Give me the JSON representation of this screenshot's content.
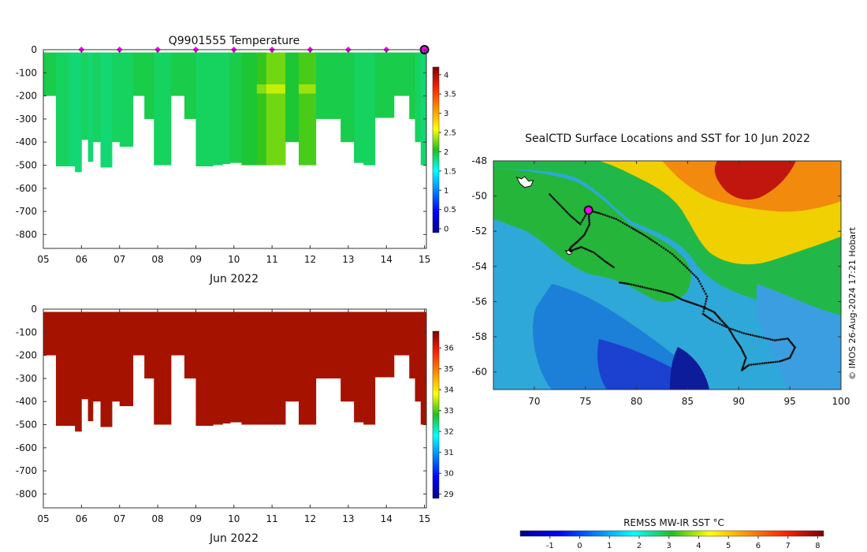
{
  "credit": "© IMOS 26-Aug-2024 17:21 Hobart",
  "months": [
    "05",
    "06",
    "07",
    "08",
    "09",
    "10",
    "11",
    "12",
    "13",
    "14",
    "15"
  ],
  "chart_data": [
    {
      "type": "heatmap",
      "title": "Q9901555  Temperature",
      "xlabel": "Jun 2022",
      "ylabel": "",
      "x_ticks": [
        "05",
        "06",
        "07",
        "08",
        "09",
        "10",
        "11",
        "12",
        "13",
        "14",
        "15"
      ],
      "xlim": [
        5,
        15.05
      ],
      "ylim": [
        -860,
        0
      ],
      "y_ticks": [
        0,
        -100,
        -200,
        -300,
        -400,
        -500,
        -600,
        -700,
        -800
      ],
      "colorbar": {
        "min": -0.1,
        "max": 4.2,
        "ticks": [
          0,
          0.5,
          1,
          1.5,
          2,
          2.5,
          3,
          3.5,
          4
        ]
      },
      "surface_markers": [
        6,
        7,
        8,
        9,
        10,
        11,
        12,
        13,
        14
      ],
      "current_marker": 15,
      "profiles": [
        {
          "t0": 5.0,
          "t1": 5.33,
          "depth": 200,
          "temp": 1.95
        },
        {
          "t0": 5.33,
          "t1": 5.67,
          "depth": 505,
          "temp": 1.9
        },
        {
          "t0": 5.67,
          "t1": 5.83,
          "depth": 505,
          "temp": 1.85
        },
        {
          "t0": 5.83,
          "t1": 6.0,
          "depth": 530,
          "temp": 1.85
        },
        {
          "t0": 6.0,
          "t1": 6.17,
          "depth": 390,
          "temp": 1.9
        },
        {
          "t0": 6.17,
          "t1": 6.3,
          "depth": 485,
          "temp": 1.85
        },
        {
          "t0": 6.3,
          "t1": 6.5,
          "depth": 400,
          "temp": 1.9
        },
        {
          "t0": 6.5,
          "t1": 6.8,
          "depth": 510,
          "temp": 1.85
        },
        {
          "t0": 6.8,
          "t1": 7.0,
          "depth": 400,
          "temp": 1.9
        },
        {
          "t0": 7.0,
          "t1": 7.35,
          "depth": 420,
          "temp": 1.9
        },
        {
          "t0": 7.35,
          "t1": 7.65,
          "depth": 200,
          "temp": 1.95
        },
        {
          "t0": 7.65,
          "t1": 7.9,
          "depth": 300,
          "temp": 1.95
        },
        {
          "t0": 7.9,
          "t1": 8.35,
          "depth": 500,
          "temp": 1.9
        },
        {
          "t0": 8.35,
          "t1": 8.7,
          "depth": 200,
          "temp": 1.95
        },
        {
          "t0": 8.7,
          "t1": 9.0,
          "depth": 300,
          "temp": 1.95
        },
        {
          "t0": 9.0,
          "t1": 9.45,
          "depth": 505,
          "temp": 1.9
        },
        {
          "t0": 9.45,
          "t1": 9.7,
          "depth": 500,
          "temp": 1.9
        },
        {
          "t0": 9.7,
          "t1": 9.9,
          "depth": 495,
          "temp": 1.9
        },
        {
          "t0": 9.9,
          "t1": 10.2,
          "depth": 490,
          "temp": 1.95
        },
        {
          "t0": 10.2,
          "t1": 10.6,
          "depth": 500,
          "temp": 2.0
        },
        {
          "t0": 10.6,
          "t1": 10.85,
          "depth": 500,
          "temp": 2.1
        },
        {
          "t0": 10.85,
          "t1": 11.35,
          "depth": 500,
          "temp": 2.25
        },
        {
          "t0": 11.35,
          "t1": 11.7,
          "depth": 400,
          "temp": 2.0
        },
        {
          "t0": 11.7,
          "t1": 12.15,
          "depth": 500,
          "temp": 2.15
        },
        {
          "t0": 12.15,
          "t1": 12.8,
          "depth": 300,
          "temp": 1.95
        },
        {
          "t0": 12.8,
          "t1": 13.15,
          "depth": 400,
          "temp": 1.95
        },
        {
          "t0": 13.15,
          "t1": 13.4,
          "depth": 490,
          "temp": 1.9
        },
        {
          "t0": 13.4,
          "t1": 13.7,
          "depth": 500,
          "temp": 1.9
        },
        {
          "t0": 13.7,
          "t1": 14.2,
          "depth": 295,
          "temp": 1.95
        },
        {
          "t0": 14.2,
          "t1": 14.6,
          "depth": 200,
          "temp": 1.95
        },
        {
          "t0": 14.6,
          "t1": 14.75,
          "depth": 300,
          "temp": 1.95
        },
        {
          "t0": 14.75,
          "t1": 14.9,
          "depth": 400,
          "temp": 1.9
        },
        {
          "t0": 14.9,
          "t1": 15.05,
          "depth": 500,
          "temp": 1.85
        }
      ]
    },
    {
      "type": "heatmap",
      "title": "",
      "xlabel": "Jun 2022",
      "ylabel": "",
      "x_ticks": [
        "05",
        "06",
        "07",
        "08",
        "09",
        "10",
        "11",
        "12",
        "13",
        "14",
        "15"
      ],
      "xlim": [
        5,
        15.05
      ],
      "ylim": [
        -860,
        0
      ],
      "y_ticks": [
        0,
        -100,
        -200,
        -300,
        -400,
        -500,
        -600,
        -700,
        -800
      ],
      "colorbar": {
        "min": 28.8,
        "max": 36.8,
        "ticks": [
          29,
          30,
          31,
          32,
          33,
          34,
          35,
          36
        ]
      },
      "fill_value": 36.8,
      "fill_color": "#a51300"
    },
    {
      "type": "heatmap",
      "title": "SealCTD Surface Locations and SST for 10 Jun 2022",
      "xlabel": "",
      "ylabel": "",
      "xlim": [
        66,
        100
      ],
      "ylim": [
        -61,
        -48
      ],
      "x_ticks": [
        70,
        75,
        80,
        85,
        90,
        95,
        100
      ],
      "y_ticks": [
        -48,
        -50,
        -52,
        -54,
        -56,
        -58,
        -60
      ],
      "current_location": [
        75.3,
        -50.8
      ],
      "track_lon": [
        71.5,
        72.5,
        73.5,
        74.5,
        75.3,
        76.5,
        78,
        79.5,
        80.7,
        82,
        83.5,
        84.8,
        86,
        86.9,
        86.5,
        87.5,
        89,
        90.5,
        92,
        93.5,
        94.8,
        95.5,
        95,
        94,
        92.5,
        91,
        90.3,
        90.7,
        90.2,
        89.6,
        89,
        88.2,
        87.6,
        86.5,
        85.5,
        84.5,
        83.5,
        82.3,
        80.8,
        79.3,
        78.2
      ],
      "track_lat": [
        -49.9,
        -50.5,
        -51.1,
        -51.6,
        -50.8,
        -51.0,
        -51.3,
        -51.8,
        -52.2,
        -52.7,
        -53.3,
        -54.0,
        -54.7,
        -55.7,
        -56.7,
        -57.1,
        -57.5,
        -57.8,
        -58.0,
        -58.2,
        -58.1,
        -58.6,
        -59.2,
        -59.4,
        -59.5,
        -59.6,
        -59.9,
        -59.2,
        -58.6,
        -58.1,
        -57.5,
        -57.0,
        -56.6,
        -56.3,
        -56.1,
        -55.9,
        -55.6,
        -55.4,
        -55.2,
        -55.0,
        -54.9
      ],
      "track2_lon": [
        75.3,
        75.4,
        74.9,
        74.2,
        73.6,
        73.3,
        73.6,
        74.6,
        75.8,
        76.9,
        77.9
      ],
      "track2_lat": [
        -50.8,
        -51.6,
        -52.2,
        -52.6,
        -52.9,
        -53.2,
        -53.1,
        -52.9,
        -53.2,
        -53.7,
        -54.1
      ],
      "land_label_points": [
        [
          68.9,
          -49.2
        ],
        [
          73.3,
          -53.2
        ]
      ],
      "colorbar": {
        "label": "REMSS MW-IR SST °C",
        "min": -2,
        "max": 8.2,
        "ticks": [
          -1,
          0,
          1,
          2,
          3,
          4,
          5,
          6,
          7,
          8
        ]
      }
    }
  ]
}
